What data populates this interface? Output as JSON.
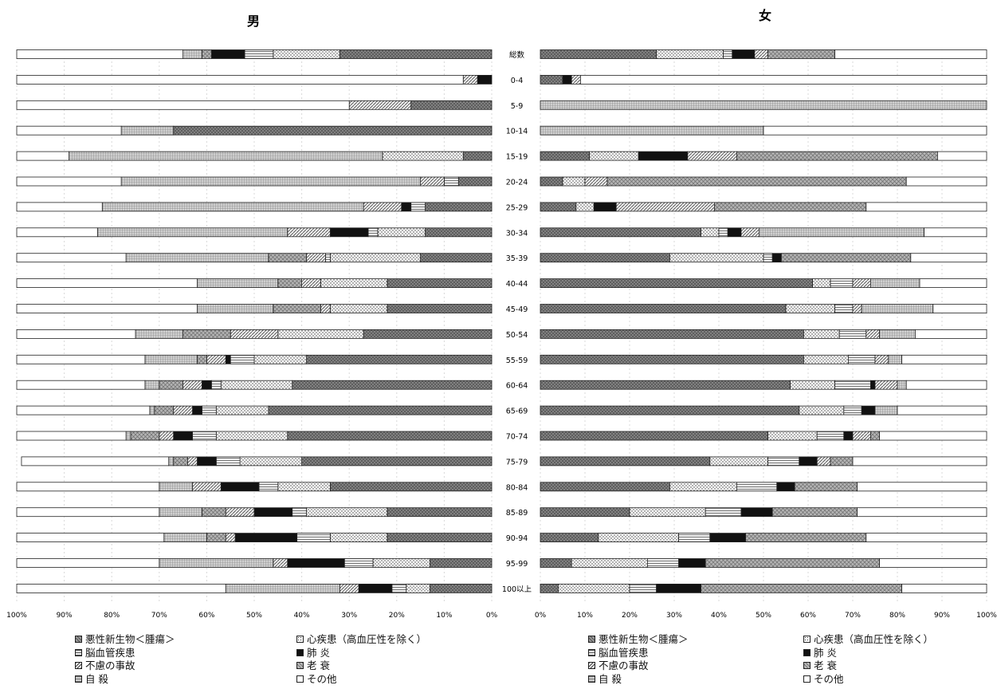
{
  "chart_data": {
    "type": "bar",
    "orientation": "horizontal-stacked-percent",
    "panels": [
      {
        "title": "男",
        "direction": "right-to-left"
      },
      {
        "title": "女",
        "direction": "left-to-right"
      }
    ],
    "categories": [
      "総数",
      "0-4",
      "5-9",
      "10-14",
      "15-19",
      "20-24",
      "25-29",
      "30-34",
      "35-39",
      "40-44",
      "45-49",
      "50-54",
      "55-59",
      "60-64",
      "65-69",
      "70-74",
      "75-79",
      "80-84",
      "85-89",
      "90-94",
      "95-99",
      "100以上"
    ],
    "x_ticks_left": [
      "100%",
      "90%",
      "80%",
      "70%",
      "60%",
      "50%",
      "40%",
      "30%",
      "20%",
      "10%",
      "0%"
    ],
    "x_ticks_right": [
      "0%",
      "10%",
      "20%",
      "30%",
      "40%",
      "50%",
      "60%",
      "70%",
      "80%",
      "90%",
      "100%"
    ],
    "xlim": [
      0,
      100
    ],
    "series": [
      {
        "name": "悪性新生物＜腫瘍＞",
        "pattern": "crosshatch-dark",
        "color": "#8a8a8a"
      },
      {
        "name": "心疾患（高血圧性を除く）",
        "pattern": "dots",
        "color": "#f2f2f2"
      },
      {
        "name": "脳血管疾患",
        "pattern": "hlines",
        "color": "#e2e2e2"
      },
      {
        "name": "肺 炎",
        "pattern": "solid-black",
        "color": "#111111"
      },
      {
        "name": "不慮の事故",
        "pattern": "diagonal",
        "color": "#dcdcdc"
      },
      {
        "name": "老 衰",
        "pattern": "crosshatch-light",
        "color": "#a8a8a8"
      },
      {
        "name": "自 殺",
        "pattern": "small-grid",
        "color": "#bdbdbd"
      },
      {
        "name": "その他",
        "pattern": "blank",
        "color": "#ffffff"
      }
    ],
    "male": [
      [
        32,
        14,
        6,
        7,
        0,
        2,
        4,
        35
      ],
      [
        0,
        0,
        0,
        3,
        3,
        0,
        0,
        94
      ],
      [
        17,
        0,
        0,
        0,
        13,
        0,
        0,
        70
      ],
      [
        67,
        0,
        0,
        0,
        0,
        0,
        11,
        22
      ],
      [
        6,
        17,
        0,
        0,
        0,
        0,
        66,
        11
      ],
      [
        7,
        0,
        3,
        0,
        5,
        0,
        63,
        22
      ],
      [
        14,
        0,
        3,
        2,
        8,
        0,
        55,
        18
      ],
      [
        14,
        10,
        2,
        8,
        9,
        0,
        40,
        17
      ],
      [
        15,
        19,
        1,
        0,
        4,
        8,
        30,
        23
      ],
      [
        22,
        14,
        0,
        0,
        4,
        5,
        17,
        38
      ],
      [
        22,
        12,
        0,
        0,
        2,
        10,
        16,
        38
      ],
      [
        27,
        18,
        0,
        0,
        10,
        10,
        10,
        25
      ],
      [
        39,
        11,
        5,
        1,
        4,
        2,
        11,
        27
      ],
      [
        42,
        15,
        2,
        2,
        4,
        5,
        3,
        27
      ],
      [
        47,
        11,
        3,
        2,
        4,
        4,
        1,
        28
      ],
      [
        43,
        15,
        5,
        4,
        3,
        6,
        1,
        23
      ],
      [
        40,
        13,
        5,
        4,
        2,
        3,
        1,
        31
      ],
      [
        34,
        11,
        4,
        8,
        6,
        0,
        7,
        30
      ],
      [
        22,
        17,
        3,
        8,
        6,
        5,
        9,
        30
      ],
      [
        22,
        12,
        7,
        13,
        2,
        4,
        9,
        31
      ],
      [
        13,
        12,
        6,
        12,
        3,
        0,
        24,
        30
      ],
      [
        13,
        5,
        3,
        7,
        4,
        0,
        24,
        44
      ]
    ],
    "female": [
      [
        26,
        15,
        2,
        5,
        3,
        15,
        0,
        34
      ],
      [
        5,
        0,
        0,
        2,
        2,
        0,
        0,
        91
      ],
      [
        0,
        0,
        0,
        0,
        0,
        0,
        100,
        0
      ],
      [
        0,
        0,
        0,
        0,
        0,
        0,
        50,
        50
      ],
      [
        11,
        11,
        0,
        11,
        11,
        45,
        0,
        11
      ],
      [
        5,
        5,
        0,
        0,
        5,
        67,
        0,
        18
      ],
      [
        8,
        4,
        0,
        5,
        22,
        34,
        0,
        27
      ],
      [
        36,
        4,
        2,
        3,
        4,
        0,
        37,
        14
      ],
      [
        29,
        21,
        2,
        2,
        0,
        29,
        0,
        17
      ],
      [
        61,
        4,
        5,
        0,
        4,
        0,
        11,
        15
      ],
      [
        55,
        11,
        4,
        0,
        2,
        0,
        16,
        12
      ],
      [
        59,
        8,
        6,
        0,
        3,
        0,
        8,
        16
      ],
      [
        59,
        10,
        6,
        0,
        3,
        0,
        3,
        19
      ],
      [
        56,
        10,
        8,
        1,
        5,
        0,
        2,
        18
      ],
      [
        58,
        10,
        4,
        3,
        0,
        0,
        5,
        20
      ],
      [
        51,
        11,
        6,
        2,
        4,
        2,
        0,
        24
      ],
      [
        38,
        13,
        7,
        4,
        3,
        5,
        0,
        30
      ],
      [
        29,
        15,
        9,
        4,
        0,
        14,
        0,
        29
      ],
      [
        20,
        17,
        8,
        7,
        0,
        19,
        0,
        29
      ],
      [
        13,
        18,
        7,
        8,
        0,
        27,
        0,
        27
      ],
      [
        7,
        17,
        7,
        6,
        0,
        39,
        0,
        24
      ],
      [
        4,
        16,
        6,
        10,
        0,
        45,
        0,
        19
      ]
    ],
    "grid": true
  },
  "legend_left": [
    "悪性新生物＜腫瘍＞",
    "心疾患（高血圧性を除く）",
    "脳血管疾患",
    "肺 炎",
    "不慮の事故",
    "老 衰",
    "自 殺",
    "その他"
  ],
  "legend_right": [
    "悪性新生物＜腫瘍＞",
    "心疾患（高血圧性を除く）",
    "脳血管疾患",
    "肺 炎",
    "不慮の事故",
    "老 衰",
    "自 殺",
    "その他"
  ]
}
